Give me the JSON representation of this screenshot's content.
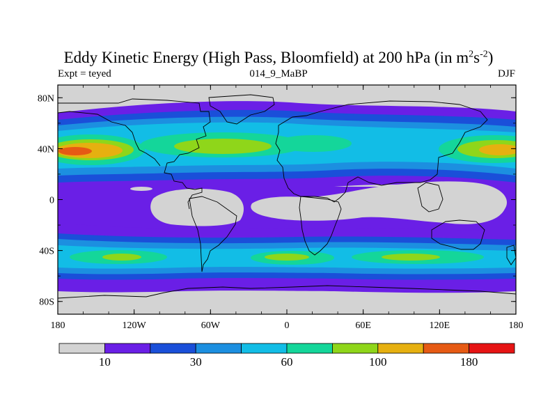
{
  "title": {
    "main": "Eddy Kinetic Energy (High Pass, Bloomfield) at 200 hPa (in m",
    "sup1": "2",
    "mid": "s",
    "sup2": "-2",
    "close": ")"
  },
  "subtitle_left": "Expt = teyed",
  "subtitle_center": "014_9_MaBP",
  "subtitle_right": "DJF",
  "map": {
    "projection": "cylindrical-equidistant",
    "lon_range": [
      -180,
      180
    ],
    "lat_range": [
      -90,
      90
    ],
    "lon_tick_labels": [
      "180",
      "120W",
      "60W",
      "0",
      "60E",
      "120E",
      "180"
    ],
    "lat_tick_labels": [
      "80N",
      "40N",
      "0",
      "40S",
      "80S"
    ],
    "field": "eddy kinetic energy",
    "units": "m2 s-2"
  },
  "colorbar": {
    "colors": [
      "#d3d3d3",
      "#6a1fe6",
      "#1a4fd9",
      "#1c8fe0",
      "#12bde6",
      "#14d69a",
      "#8fd61a",
      "#e6b010",
      "#e65a14",
      "#e61414"
    ],
    "labels": [
      {
        "text": "10",
        "at_boundary": 1
      },
      {
        "text": "30",
        "at_boundary": 3
      },
      {
        "text": "60",
        "at_boundary": 5
      },
      {
        "text": "100",
        "at_boundary": 7
      },
      {
        "text": "180",
        "at_boundary": 9
      }
    ]
  }
}
